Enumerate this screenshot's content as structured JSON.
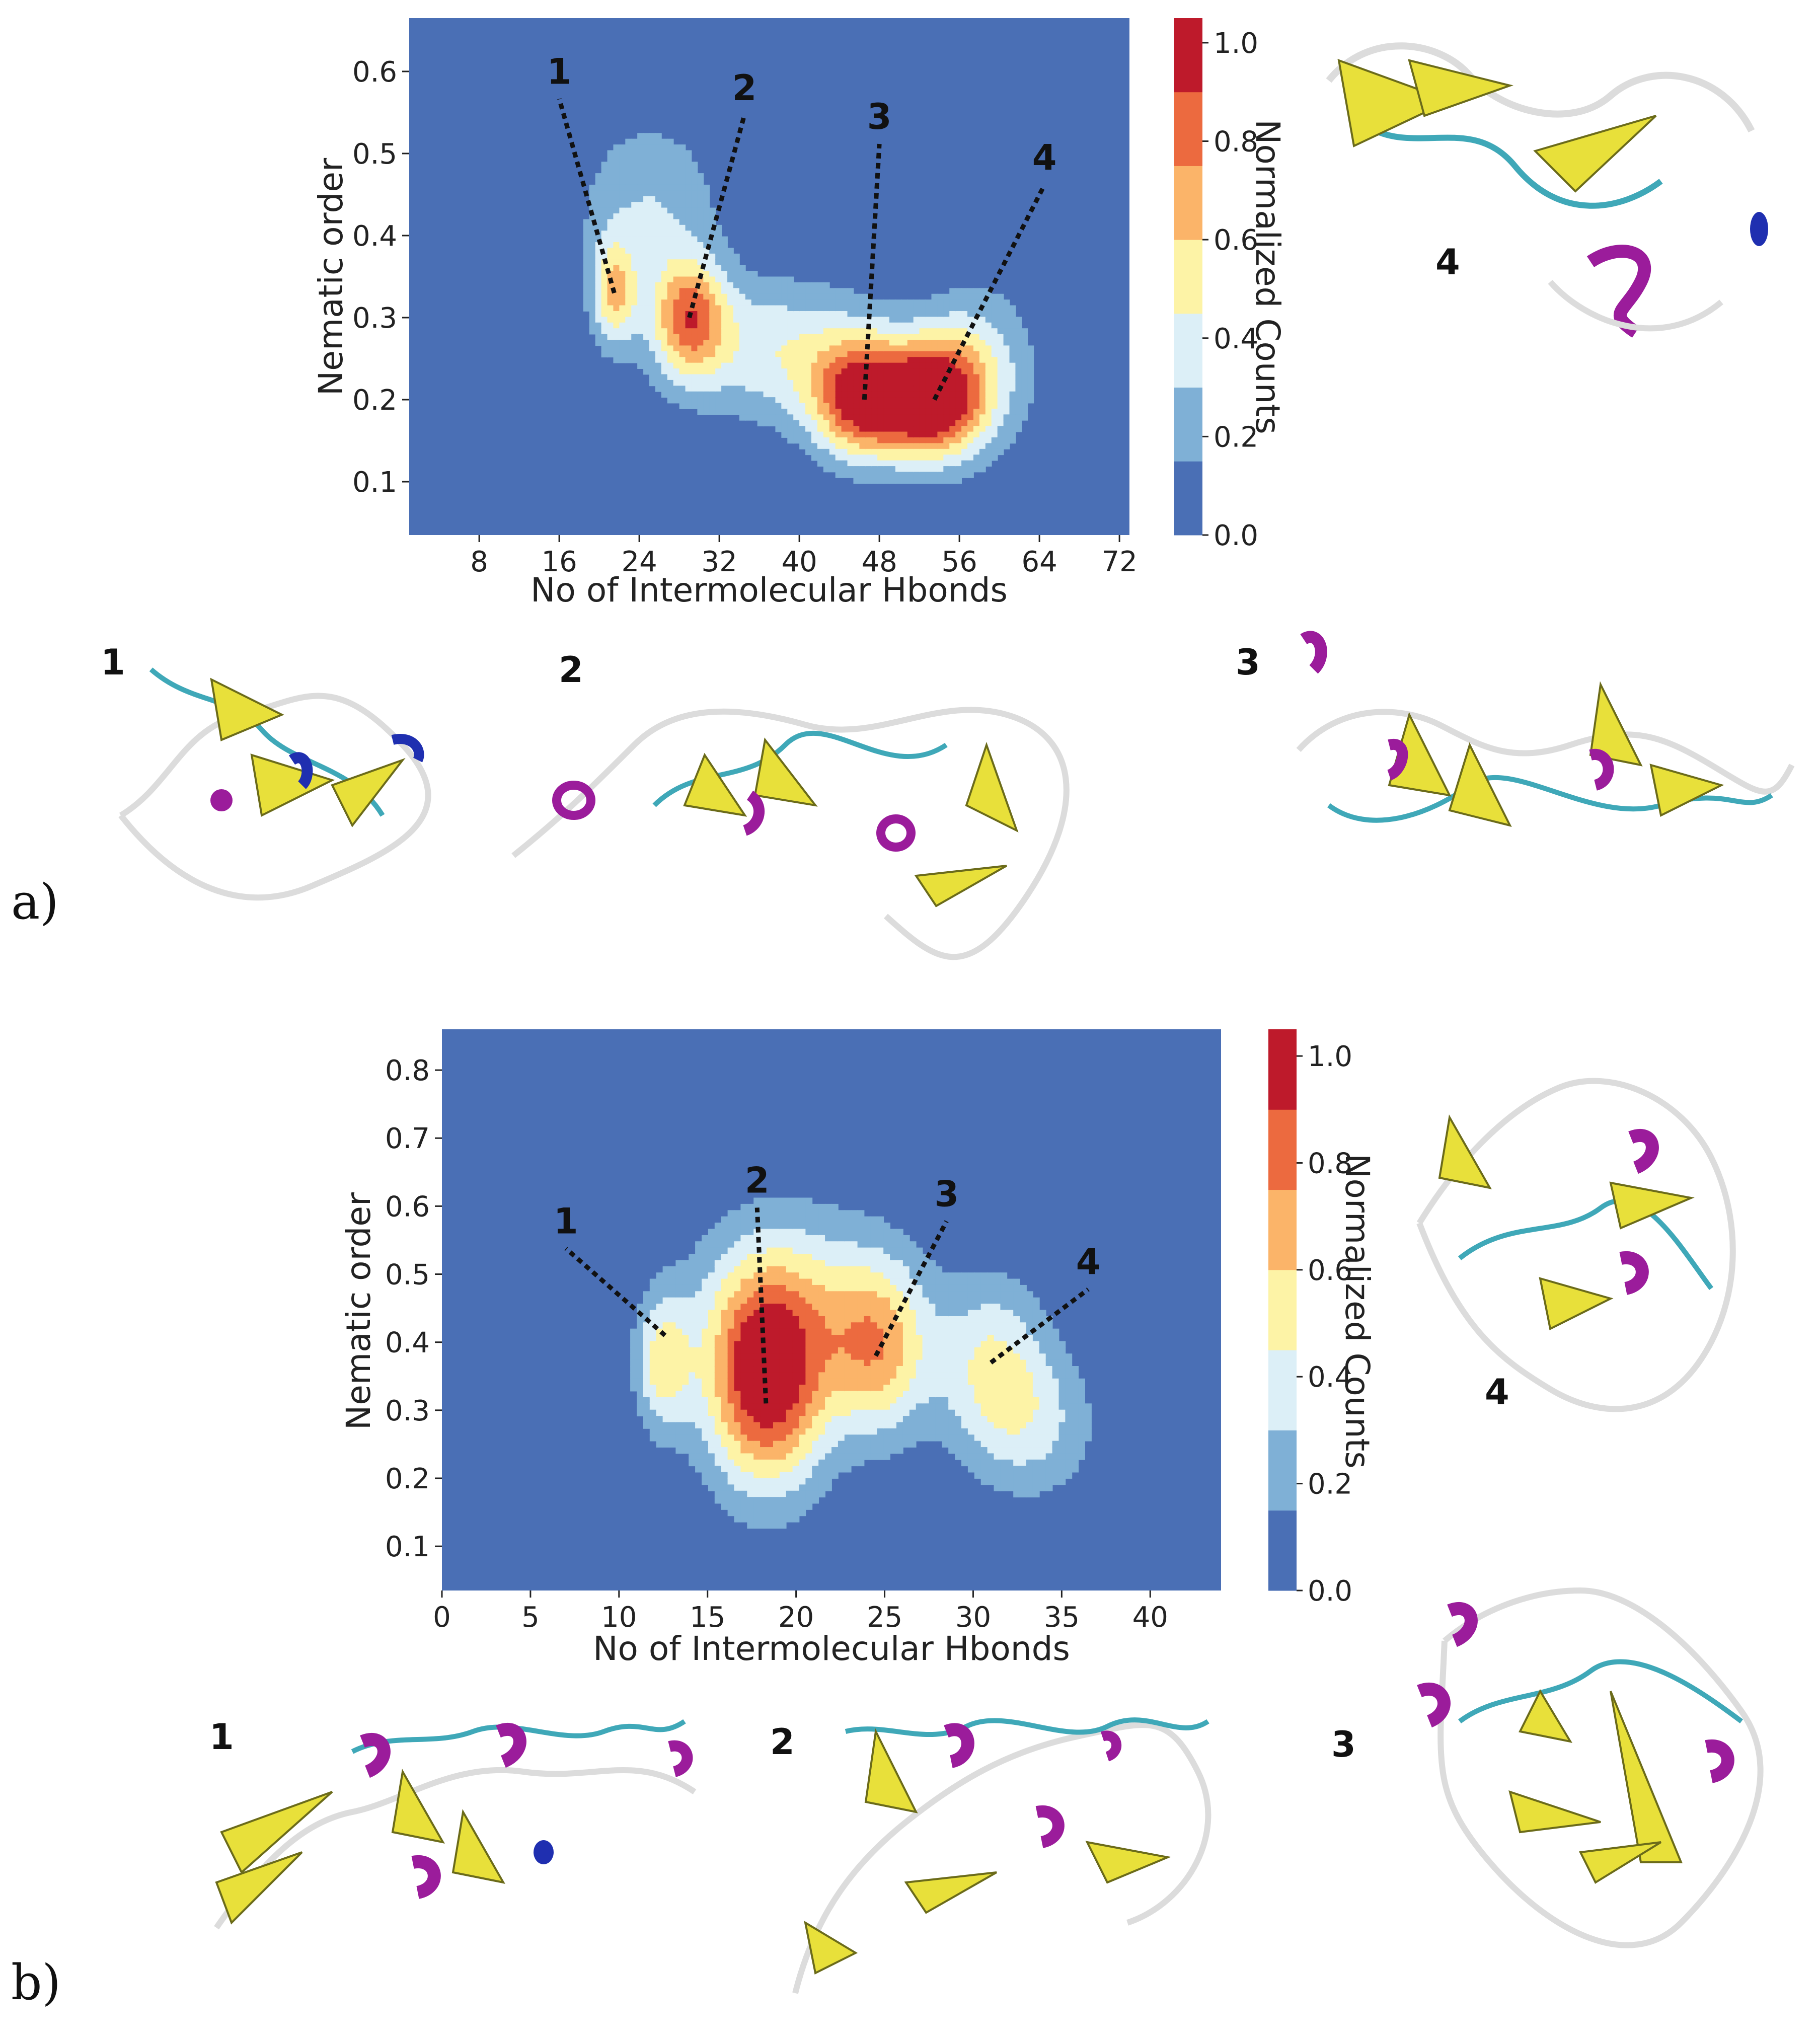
{
  "colors": {
    "levels": [
      "#4a6fb5",
      "#7fb0d6",
      "#dcefF7",
      "#fdf3a6",
      "#fbb469",
      "#ec6a3f",
      "#be1a2b"
    ],
    "helix": "#9b1c9b",
    "sheet": "#e8e03a",
    "turn": "#3fa8b8",
    "coil": "#dcdcdc",
    "helix310": "#1f2fb0"
  },
  "colorbar": {
    "label": "Normalized Counts",
    "ticks": [
      "0.0",
      "0.2",
      "0.4",
      "0.6",
      "0.8",
      "1.0"
    ]
  },
  "panels": [
    {
      "panel_label": "a)",
      "marker_labels": [
        "1",
        "2",
        "3",
        "4"
      ],
      "structure_labels": [
        "1",
        "2",
        "3",
        "4"
      ]
    },
    {
      "panel_label": "b)",
      "marker_labels": [
        "1",
        "2",
        "3",
        "4"
      ],
      "structure_labels": [
        "1",
        "2",
        "3",
        "4"
      ]
    }
  ],
  "chart_data": [
    {
      "type": "heatmap",
      "xlabel": "No of Intermolecular Hbonds",
      "ylabel": "Nematic order",
      "colorbar_label": "Normalized Counts",
      "xlim": [
        1,
        73
      ],
      "ylim": [
        0.035,
        0.665
      ],
      "xticks": [
        8,
        16,
        24,
        32,
        40,
        48,
        56,
        64,
        72
      ],
      "yticks": [
        0.1,
        0.2,
        0.3,
        0.4,
        0.5,
        0.6
      ],
      "colorbar_levels": [
        0.0,
        0.15,
        0.3,
        0.45,
        0.6,
        0.75,
        0.9,
        1.05
      ],
      "colorbar_ticks": [
        0.0,
        0.2,
        0.4,
        0.6,
        0.8,
        1.0
      ],
      "peaks": [
        {
          "x": 21.5,
          "y": 0.33,
          "sx": 1.6,
          "sy": 0.045,
          "amp": 0.55
        },
        {
          "x": 29,
          "y": 0.3,
          "sx": 2.6,
          "sy": 0.05,
          "amp": 0.72
        },
        {
          "x": 46.5,
          "y": 0.2,
          "sx": 3.6,
          "sy": 0.05,
          "amp": 0.98
        },
        {
          "x": 53.5,
          "y": 0.2,
          "sx": 3.4,
          "sy": 0.05,
          "amp": 1.0
        },
        {
          "x": 25,
          "y": 0.43,
          "sx": 5,
          "sy": 0.08,
          "amp": 0.3
        },
        {
          "x": 38,
          "y": 0.26,
          "sx": 7,
          "sy": 0.06,
          "amp": 0.42
        },
        {
          "x": 58,
          "y": 0.24,
          "sx": 4,
          "sy": 0.07,
          "amp": 0.35
        }
      ],
      "markers": [
        {
          "label": "1",
          "tip": [
            21.5,
            0.33
          ],
          "text_pos": [
            16,
            0.585
          ]
        },
        {
          "label": "2",
          "tip": [
            29,
            0.3
          ],
          "text_pos": [
            34.5,
            0.565
          ]
        },
        {
          "label": "3",
          "tip": [
            46.5,
            0.2
          ],
          "text_pos": [
            48,
            0.53
          ]
        },
        {
          "label": "4",
          "tip": [
            53.5,
            0.2
          ],
          "text_pos": [
            64.5,
            0.48
          ]
        }
      ]
    },
    {
      "type": "heatmap",
      "xlabel": "No of Intermolecular Hbonds",
      "ylabel": "Nematic order",
      "colorbar_label": "Normalized Counts",
      "xlim": [
        0,
        44
      ],
      "ylim": [
        0.035,
        0.86
      ],
      "xticks": [
        0,
        5,
        10,
        15,
        20,
        25,
        30,
        35,
        40
      ],
      "yticks": [
        0.1,
        0.2,
        0.3,
        0.4,
        0.5,
        0.6,
        0.7,
        0.8
      ],
      "colorbar_levels": [
        0.0,
        0.15,
        0.3,
        0.45,
        0.6,
        0.75,
        0.9,
        1.05
      ],
      "colorbar_ticks": [
        0.0,
        0.2,
        0.4,
        0.6,
        0.8,
        1.0
      ],
      "peaks": [
        {
          "x": 12.5,
          "y": 0.37,
          "sx": 1.1,
          "sy": 0.07,
          "amp": 0.5
        },
        {
          "x": 18.3,
          "y": 0.34,
          "sx": 2.4,
          "sy": 0.11,
          "amp": 1.0
        },
        {
          "x": 24.7,
          "y": 0.39,
          "sx": 2.0,
          "sy": 0.09,
          "amp": 0.6
        },
        {
          "x": 31,
          "y": 0.37,
          "sx": 2.2,
          "sy": 0.09,
          "amp": 0.42
        },
        {
          "x": 20,
          "y": 0.46,
          "sx": 4,
          "sy": 0.1,
          "amp": 0.35
        },
        {
          "x": 33.5,
          "y": 0.28,
          "sx": 2.5,
          "sy": 0.08,
          "amp": 0.3
        }
      ],
      "markers": [
        {
          "label": "1",
          "tip": [
            12.6,
            0.41
          ],
          "text_pos": [
            7,
            0.56
          ]
        },
        {
          "label": "2",
          "tip": [
            18.3,
            0.31
          ],
          "text_pos": [
            17.8,
            0.62
          ]
        },
        {
          "label": "3",
          "tip": [
            24.5,
            0.38
          ],
          "text_pos": [
            28.5,
            0.6
          ]
        },
        {
          "label": "4",
          "tip": [
            31,
            0.37
          ],
          "text_pos": [
            36.5,
            0.5
          ]
        }
      ]
    }
  ]
}
